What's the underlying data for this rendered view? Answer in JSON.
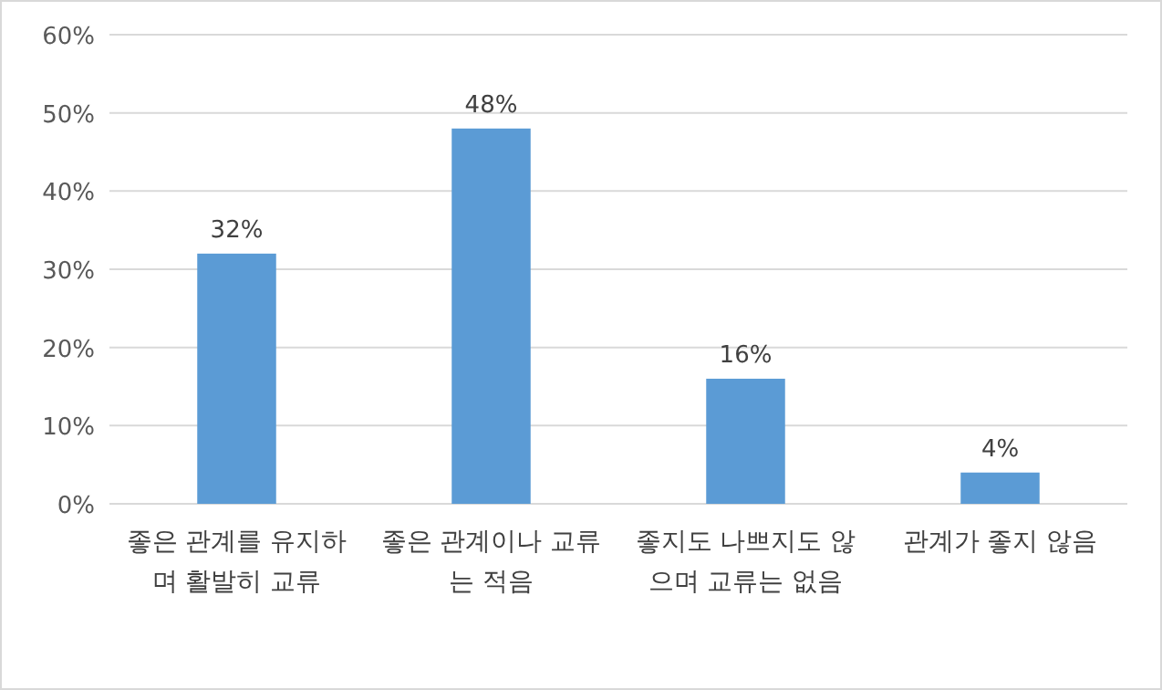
{
  "chart_data": {
    "type": "bar",
    "categories": [
      "좋은 관계를 유지하며 활발히 교류",
      "좋은 관계이나 교류는 적음",
      "좋지도 나쁘지도 않으며 교류는 없음",
      "관계가 좋지 않음"
    ],
    "values": [
      32,
      48,
      16,
      4
    ],
    "value_labels": [
      "32%",
      "48%",
      "16%",
      "4%"
    ],
    "color": "#5b9bd5",
    "ylim": [
      0,
      60
    ],
    "yticks": [
      {
        "value": 0,
        "label": "0%"
      },
      {
        "value": 10,
        "label": "10%"
      },
      {
        "value": 20,
        "label": "20%"
      },
      {
        "value": 30,
        "label": "30%"
      },
      {
        "value": 40,
        "label": "40%"
      },
      {
        "value": 50,
        "label": "50%"
      },
      {
        "value": 60,
        "label": "60%"
      }
    ],
    "grid": "y"
  }
}
